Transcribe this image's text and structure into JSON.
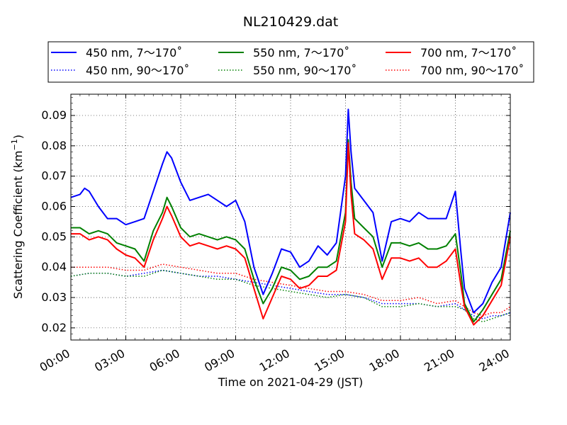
{
  "chart_data": {
    "type": "line",
    "title": "NL210429.dat",
    "xlabel": "Time on 2021-04-29 (JST)",
    "ylabel_main": "Scattering Coefficient (km",
    "ylabel_sup": "−1",
    "ylabel_close": ")",
    "xlim": [
      0,
      24
    ],
    "ylim": [
      0.016,
      0.097
    ],
    "grid": true,
    "legend_position": "top, outside plot, 3 columns",
    "x_ticks": [
      {
        "value": 0,
        "label": "00:00"
      },
      {
        "value": 3,
        "label": "03:00"
      },
      {
        "value": 6,
        "label": "06:00"
      },
      {
        "value": 9,
        "label": "09:00"
      },
      {
        "value": 12,
        "label": "12:00"
      },
      {
        "value": 15,
        "label": "15:00"
      },
      {
        "value": 18,
        "label": "18:00"
      },
      {
        "value": 21,
        "label": "21:00"
      },
      {
        "value": 24,
        "label": "24:00"
      }
    ],
    "y_ticks": [
      {
        "value": 0.02,
        "label": "0.02"
      },
      {
        "value": 0.03,
        "label": "0.03"
      },
      {
        "value": 0.04,
        "label": "0.04"
      },
      {
        "value": 0.05,
        "label": "0.05"
      },
      {
        "value": 0.06,
        "label": "0.06"
      },
      {
        "value": 0.07,
        "label": "0.07"
      },
      {
        "value": 0.08,
        "label": "0.08"
      },
      {
        "value": 0.09,
        "label": "0.09"
      }
    ],
    "series": [
      {
        "name": "450 nm, 7～170˚",
        "color": "#0000ff",
        "style": "solid",
        "x": [
          0,
          0.5,
          0.75,
          1,
          1.5,
          2,
          2.5,
          3,
          3.5,
          4,
          4.5,
          5,
          5.25,
          5.5,
          6,
          6.5,
          7,
          7.5,
          8,
          8.5,
          9,
          9.5,
          10,
          10.5,
          11,
          11.5,
          12,
          12.5,
          13,
          13.5,
          14,
          14.5,
          15,
          15.15,
          15.3,
          15.5,
          16,
          16.5,
          17,
          17.5,
          18,
          18.5,
          19,
          19.5,
          20,
          20.5,
          21,
          21.3,
          21.5,
          22,
          22.5,
          23,
          23.5,
          24
        ],
        "y": [
          0.063,
          0.064,
          0.066,
          0.065,
          0.06,
          0.056,
          0.056,
          0.054,
          0.055,
          0.056,
          0.065,
          0.074,
          0.078,
          0.076,
          0.068,
          0.062,
          0.063,
          0.064,
          0.062,
          0.06,
          0.062,
          0.055,
          0.04,
          0.031,
          0.038,
          0.046,
          0.045,
          0.04,
          0.042,
          0.047,
          0.044,
          0.048,
          0.07,
          0.092,
          0.078,
          0.066,
          0.062,
          0.058,
          0.042,
          0.055,
          0.056,
          0.055,
          0.058,
          0.056,
          0.056,
          0.056,
          0.065,
          0.045,
          0.033,
          0.025,
          0.028,
          0.035,
          0.04,
          0.058
        ]
      },
      {
        "name": "550 nm, 7～170˚",
        "color": "#008000",
        "style": "solid",
        "x": [
          0,
          0.5,
          1,
          1.5,
          2,
          2.5,
          3,
          3.5,
          4,
          4.5,
          5,
          5.25,
          5.5,
          6,
          6.5,
          7,
          7.5,
          8,
          8.5,
          9,
          9.5,
          10,
          10.5,
          11,
          11.5,
          12,
          12.5,
          13,
          13.5,
          14,
          14.5,
          15,
          15.15,
          15.3,
          15.5,
          16,
          16.5,
          17,
          17.5,
          18,
          18.5,
          19,
          19.5,
          20,
          20.5,
          21,
          21.3,
          21.5,
          22,
          22.5,
          23,
          23.5,
          24
        ],
        "y": [
          0.053,
          0.053,
          0.051,
          0.052,
          0.051,
          0.048,
          0.047,
          0.046,
          0.042,
          0.052,
          0.058,
          0.063,
          0.06,
          0.053,
          0.05,
          0.051,
          0.05,
          0.049,
          0.05,
          0.049,
          0.046,
          0.036,
          0.028,
          0.033,
          0.04,
          0.039,
          0.036,
          0.037,
          0.04,
          0.04,
          0.042,
          0.058,
          0.082,
          0.068,
          0.056,
          0.053,
          0.05,
          0.04,
          0.048,
          0.048,
          0.047,
          0.048,
          0.046,
          0.046,
          0.047,
          0.051,
          0.038,
          0.028,
          0.022,
          0.026,
          0.031,
          0.036,
          0.052
        ]
      },
      {
        "name": "700 nm, 7～170˚",
        "color": "#ff0000",
        "style": "solid",
        "x": [
          0,
          0.5,
          1,
          1.5,
          2,
          2.5,
          3,
          3.5,
          4,
          4.5,
          5,
          5.25,
          5.5,
          6,
          6.5,
          7,
          7.5,
          8,
          8.5,
          9,
          9.5,
          10,
          10.5,
          11,
          11.5,
          12,
          12.5,
          13,
          13.5,
          14,
          14.5,
          15,
          15.15,
          15.3,
          15.5,
          16,
          16.5,
          17,
          17.5,
          18,
          18.5,
          19,
          19.5,
          20,
          20.5,
          21,
          21.3,
          21.5,
          22,
          22.5,
          23,
          23.5,
          24
        ],
        "y": [
          0.051,
          0.051,
          0.049,
          0.05,
          0.049,
          0.046,
          0.044,
          0.043,
          0.04,
          0.049,
          0.056,
          0.06,
          0.057,
          0.05,
          0.047,
          0.048,
          0.047,
          0.046,
          0.047,
          0.046,
          0.043,
          0.033,
          0.023,
          0.03,
          0.037,
          0.036,
          0.033,
          0.034,
          0.037,
          0.037,
          0.039,
          0.055,
          0.081,
          0.064,
          0.051,
          0.049,
          0.046,
          0.036,
          0.043,
          0.043,
          0.042,
          0.043,
          0.04,
          0.04,
          0.042,
          0.046,
          0.034,
          0.027,
          0.021,
          0.024,
          0.029,
          0.034,
          0.05
        ]
      },
      {
        "name": "450 nm, 90～170˚",
        "color": "#0000ff",
        "style": "dotted",
        "x": [
          0,
          1,
          2,
          3,
          4,
          5,
          6,
          7,
          8,
          9,
          10,
          11,
          12,
          13,
          14,
          15,
          16,
          17,
          18,
          19,
          20,
          21,
          21.5,
          22,
          22.5,
          23,
          23.5,
          24
        ],
        "y": [
          0.037,
          0.038,
          0.038,
          0.037,
          0.038,
          0.039,
          0.038,
          0.037,
          0.037,
          0.036,
          0.035,
          0.034,
          0.033,
          0.032,
          0.031,
          0.031,
          0.03,
          0.028,
          0.028,
          0.028,
          0.027,
          0.028,
          0.026,
          0.024,
          0.023,
          0.024,
          0.024,
          0.025
        ]
      },
      {
        "name": "550 nm, 90～170˚",
        "color": "#008000",
        "style": "dotted",
        "x": [
          0,
          1,
          2,
          3,
          4,
          5,
          6,
          7,
          8,
          9,
          10,
          11,
          12,
          13,
          14,
          15,
          16,
          17,
          18,
          19,
          20,
          21,
          21.5,
          22,
          22.5,
          23,
          23.5,
          24
        ],
        "y": [
          0.037,
          0.038,
          0.038,
          0.037,
          0.037,
          0.039,
          0.038,
          0.037,
          0.036,
          0.036,
          0.034,
          0.033,
          0.032,
          0.031,
          0.03,
          0.031,
          0.03,
          0.027,
          0.027,
          0.028,
          0.027,
          0.027,
          0.026,
          0.023,
          0.022,
          0.023,
          0.024,
          0.025
        ]
      },
      {
        "name": "700 nm, 90～170˚",
        "color": "#ff0000",
        "style": "dotted",
        "x": [
          0,
          1,
          2,
          3,
          4,
          5,
          6,
          7,
          8,
          9,
          10,
          11,
          12,
          13,
          14,
          15,
          16,
          17,
          18,
          19,
          20,
          21,
          21.5,
          22,
          22.5,
          23,
          23.5,
          24
        ],
        "y": [
          0.04,
          0.04,
          0.04,
          0.039,
          0.039,
          0.041,
          0.04,
          0.039,
          0.038,
          0.038,
          0.036,
          0.035,
          0.034,
          0.033,
          0.032,
          0.032,
          0.031,
          0.029,
          0.029,
          0.03,
          0.028,
          0.029,
          0.027,
          0.025,
          0.024,
          0.025,
          0.025,
          0.027
        ]
      }
    ]
  }
}
